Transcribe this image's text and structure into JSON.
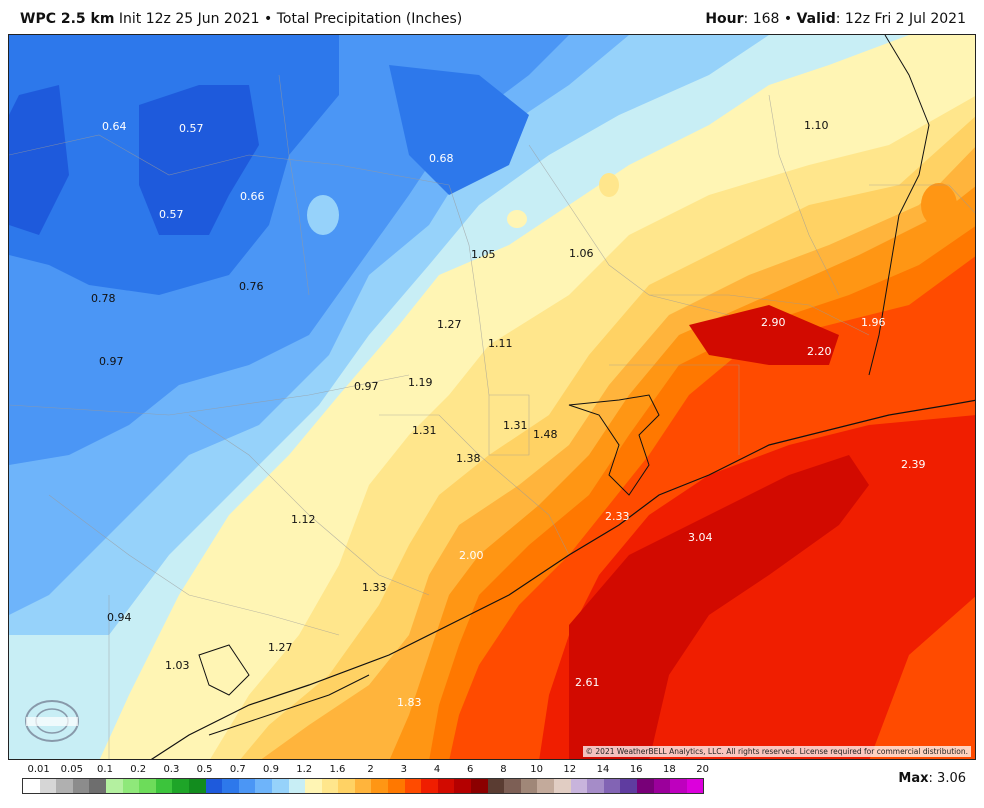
{
  "header": {
    "model": "WPC 2.5 km",
    "init": "Init 12z 25 Jun 2021",
    "bullet": "•",
    "product": "Total Precipitation (Inches)",
    "hour_label": "Hour",
    "hour_value": "168",
    "valid_label": "Valid",
    "valid_value": "12z Fri 2 Jul 2021"
  },
  "map": {
    "labels": [
      {
        "text": "0.64",
        "light": true
      },
      {
        "text": "0.57",
        "light": true
      },
      {
        "text": "0.68",
        "light": true
      },
      {
        "text": "1.10",
        "light": false
      },
      {
        "text": "0.66",
        "light": true
      },
      {
        "text": "0.57",
        "light": true
      },
      {
        "text": "1.05",
        "light": false
      },
      {
        "text": "1.06",
        "light": false
      },
      {
        "text": "0.78",
        "light": false
      },
      {
        "text": "0.76",
        "light": false
      },
      {
        "text": "2.90",
        "light": true
      },
      {
        "text": "1.96",
        "light": true
      },
      {
        "text": "1.27",
        "light": false
      },
      {
        "text": "1.11",
        "light": false
      },
      {
        "text": "2.20",
        "light": true
      },
      {
        "text": "0.97",
        "light": false
      },
      {
        "text": "0.97",
        "light": false
      },
      {
        "text": "1.19",
        "light": false
      },
      {
        "text": "1.31",
        "light": false
      },
      {
        "text": "1.31",
        "light": false
      },
      {
        "text": "1.48",
        "light": false
      },
      {
        "text": "1.38",
        "light": false
      },
      {
        "text": "2.39",
        "light": true
      },
      {
        "text": "2.33",
        "light": true
      },
      {
        "text": "1.12",
        "light": false
      },
      {
        "text": "3.04",
        "light": true
      },
      {
        "text": "2.00",
        "light": true
      },
      {
        "text": "1.33",
        "light": false
      },
      {
        "text": "0.94",
        "light": false
      },
      {
        "text": "1.27",
        "light": false
      },
      {
        "text": "1.03",
        "light": false
      },
      {
        "text": "2.61",
        "light": true
      },
      {
        "text": "1.83",
        "light": true
      }
    ],
    "copyright": "© 2021 WeatherBELL Analytics, LLC. All rights reserved. License required for commercial distribution.",
    "logo_text": "WeatherBELL"
  },
  "legend": {
    "ticks": [
      "0.01",
      "0.05",
      "0.1",
      "0.2",
      "0.3",
      "0.5",
      "0.7",
      "0.9",
      "1.2",
      "1.6",
      "2",
      "3",
      "4",
      "6",
      "8",
      "10",
      "12",
      "14",
      "16",
      "18",
      "20"
    ],
    "colors": [
      "#ffffff",
      "#d6d6d6",
      "#b0b0b0",
      "#8c8c8c",
      "#6e6e6e",
      "#b4f0a0",
      "#8fe87a",
      "#6ddc5a",
      "#3cc43c",
      "#1ea528",
      "#128c1e",
      "#1e5adc",
      "#2d78eb",
      "#4b96f5",
      "#6eb4fa",
      "#96d2fa",
      "#c8eef5",
      "#fff5b4",
      "#ffe68c",
      "#ffd264",
      "#ffb43c",
      "#ff9614",
      "#ff7800",
      "#ff4b00",
      "#f01e00",
      "#d20a00",
      "#b40000",
      "#8c0000",
      "#5a3c32",
      "#7d5f55",
      "#a08778",
      "#c3aa9b",
      "#e1cdc3",
      "#c8b4dc",
      "#a58cc8",
      "#8264b4",
      "#5f3ca0",
      "#780078",
      "#9b009b",
      "#be00be",
      "#dc00dc"
    ],
    "max_label": "Max",
    "max_value": "3.06"
  },
  "colors": {
    "deep_blue": "#1e5adc",
    "light_yellow": "#fff5b4",
    "orange": "#ffb43c",
    "red": "#f01e00"
  }
}
